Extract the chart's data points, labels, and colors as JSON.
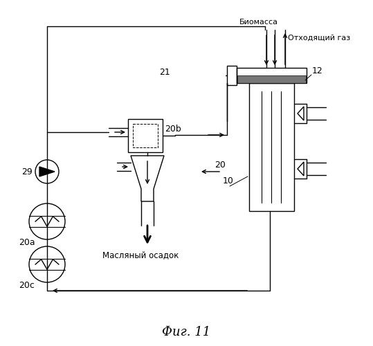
{
  "bg_color": "#ffffff",
  "line_color": "#000000",
  "labels": {
    "biomass": "Биомасса",
    "offgas": "Отходящий газ",
    "oil_sediment": "Масляный осадок",
    "fig": "Фиг. 11",
    "num_10": "10",
    "num_12": "12",
    "num_20": "20",
    "num_20a": "20a",
    "num_20b": "20b",
    "num_20c": "20c",
    "num_21": "21",
    "num_29": "29"
  }
}
